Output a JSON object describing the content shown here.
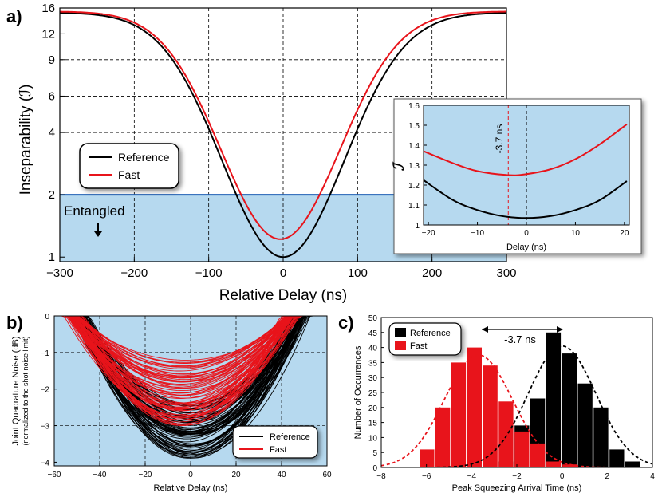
{
  "panel_labels": {
    "a": "a)",
    "b": "b)",
    "c": "c)"
  },
  "chart_data": [
    {
      "panel": "a",
      "type": "line",
      "xlabel": "Relative Delay (ns)",
      "ylabel": "Inseparability (ℐ)",
      "xlim": [
        -300,
        300
      ],
      "ylim": [
        0.95,
        16
      ],
      "yscale": "log",
      "xticks": [
        "−300",
        "−200",
        "−100",
        "0",
        "100",
        "200",
        "300"
      ],
      "yticks": [
        "1",
        "2",
        "4",
        "6",
        "9",
        "12",
        "16"
      ],
      "grid": true,
      "legend_position": "left",
      "entangled_threshold": 2,
      "entangled_label": "Entangled",
      "series": [
        {
          "name": "Reference",
          "color": "#000000",
          "min_x": 0,
          "min_y": 1.0,
          "plateau": 15.2
        },
        {
          "name": "Fast",
          "color": "#e8141b",
          "min_x": -3.7,
          "min_y": 1.22,
          "plateau": 15.4
        }
      ],
      "colors": {
        "entangled_region": "#b6d9ef",
        "threshold_line": "#1f5fb4"
      }
    },
    {
      "panel": "a-inset",
      "type": "line",
      "xlabel": "Delay (ns)",
      "ylabel": "ℐ",
      "xlim": [
        -21,
        21
      ],
      "ylim": [
        1.0,
        1.6
      ],
      "xticks": [
        "−20",
        "−10",
        "0",
        "10",
        "20"
      ],
      "yticks": [
        "1",
        "1.1",
        "1.2",
        "1.3",
        "1.4",
        "1.5",
        "1.6"
      ],
      "annotation": "-3.7 ns",
      "marker_x": -3.7,
      "series": [
        {
          "name": "Reference",
          "color": "#000000",
          "x": [
            -21,
            -15,
            -10,
            -5,
            0,
            5,
            10,
            15,
            20.5
          ],
          "y": [
            1.225,
            1.125,
            1.075,
            1.045,
            1.035,
            1.045,
            1.075,
            1.125,
            1.22
          ]
        },
        {
          "name": "Fast",
          "color": "#e8141b",
          "x": [
            -21,
            -15,
            -10,
            -3.7,
            0,
            5,
            10,
            15,
            20.5
          ],
          "y": [
            1.37,
            1.31,
            1.27,
            1.25,
            1.255,
            1.28,
            1.33,
            1.405,
            1.505
          ]
        }
      ]
    },
    {
      "panel": "b",
      "type": "line",
      "xlabel": "Relative Delay (ns)",
      "ylabel": "Joint Quadrature Noise (dB)",
      "ylabel_sub": "(normalized to the shot noise limit)",
      "xlim": [
        -60,
        60
      ],
      "ylim": [
        -4.1,
        0
      ],
      "xticks": [
        "−60",
        "−40",
        "−20",
        "0",
        "20",
        "40",
        "60"
      ],
      "yticks": [
        "0",
        "−1",
        "−2",
        "−3",
        "−4"
      ],
      "grid": true,
      "legend_position": "lower-right",
      "series": [
        {
          "name": "Reference",
          "color": "#000000",
          "min_range": [
            -3.9,
            -2.4
          ],
          "min_x": 0
        },
        {
          "name": "Fast",
          "color": "#e8141b",
          "min_range": [
            -3.0,
            -1.2
          ],
          "min_x": -3.7
        }
      ]
    },
    {
      "panel": "c",
      "type": "bar",
      "xlabel": "Peak Squeezing Arrival Time (ns)",
      "ylabel": "Number of Occurrences",
      "xlim": [
        -8,
        4
      ],
      "ylim": [
        0,
        50
      ],
      "xticks": [
        "−8",
        "−6",
        "−4",
        "−2",
        "0",
        "2",
        "4"
      ],
      "yticks": [
        "0",
        "5",
        "10",
        "15",
        "20",
        "25",
        "30",
        "35",
        "40",
        "45",
        "50"
      ],
      "annotation": "-3.7 ns",
      "legend_position": "top-left",
      "bin_width": 0.7,
      "series": [
        {
          "name": "Reference",
          "color": "#000000",
          "bins": [
            -2.45,
            -1.75,
            -1.05,
            -0.35,
            0.35,
            1.05,
            1.75,
            2.45,
            3.15
          ],
          "values": [
            2,
            14,
            23,
            45,
            38,
            28,
            20,
            6,
            2
          ],
          "fit_mean": 0,
          "fit_amp": 40.5,
          "fit_sigma": 1.5
        },
        {
          "name": "Fast",
          "color": "#e8141b",
          "bins": [
            -5.95,
            -5.25,
            -4.55,
            -3.85,
            -3.15,
            -2.45,
            -1.75,
            -1.05,
            -0.35,
            0.35
          ],
          "values": [
            6,
            20,
            35,
            40,
            34,
            22,
            12,
            8,
            2,
            1
          ],
          "fit_mean": -3.7,
          "fit_amp": 37.5,
          "fit_sigma": 1.5
        }
      ]
    }
  ]
}
